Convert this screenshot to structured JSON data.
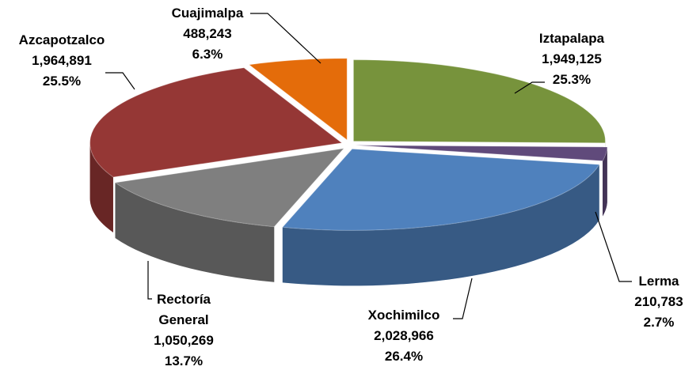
{
  "chart_data": {
    "type": "pie",
    "categories": [
      "Iztapalapa",
      "Lerma",
      "Xochimilco",
      "Rectoría General",
      "Azcapotzalco",
      "Cuajimalpa"
    ],
    "values": [
      1949125,
      210783,
      2028966,
      1050269,
      1964891,
      488243
    ],
    "value_labels": [
      "1,949,125",
      "210,783",
      "2,028,966",
      "1,050,269",
      "1,964,891",
      "488,243"
    ],
    "percents": [
      25.3,
      2.7,
      26.4,
      13.7,
      25.5,
      6.3
    ],
    "percent_labels": [
      "25.3%",
      "2.7%",
      "26.4%",
      "13.7%",
      "25.5%",
      "6.3%"
    ],
    "colors": [
      "#77933c",
      "#604a7b",
      "#4f81bd",
      "#7f7f7f",
      "#953735",
      "#e46c0a"
    ]
  }
}
